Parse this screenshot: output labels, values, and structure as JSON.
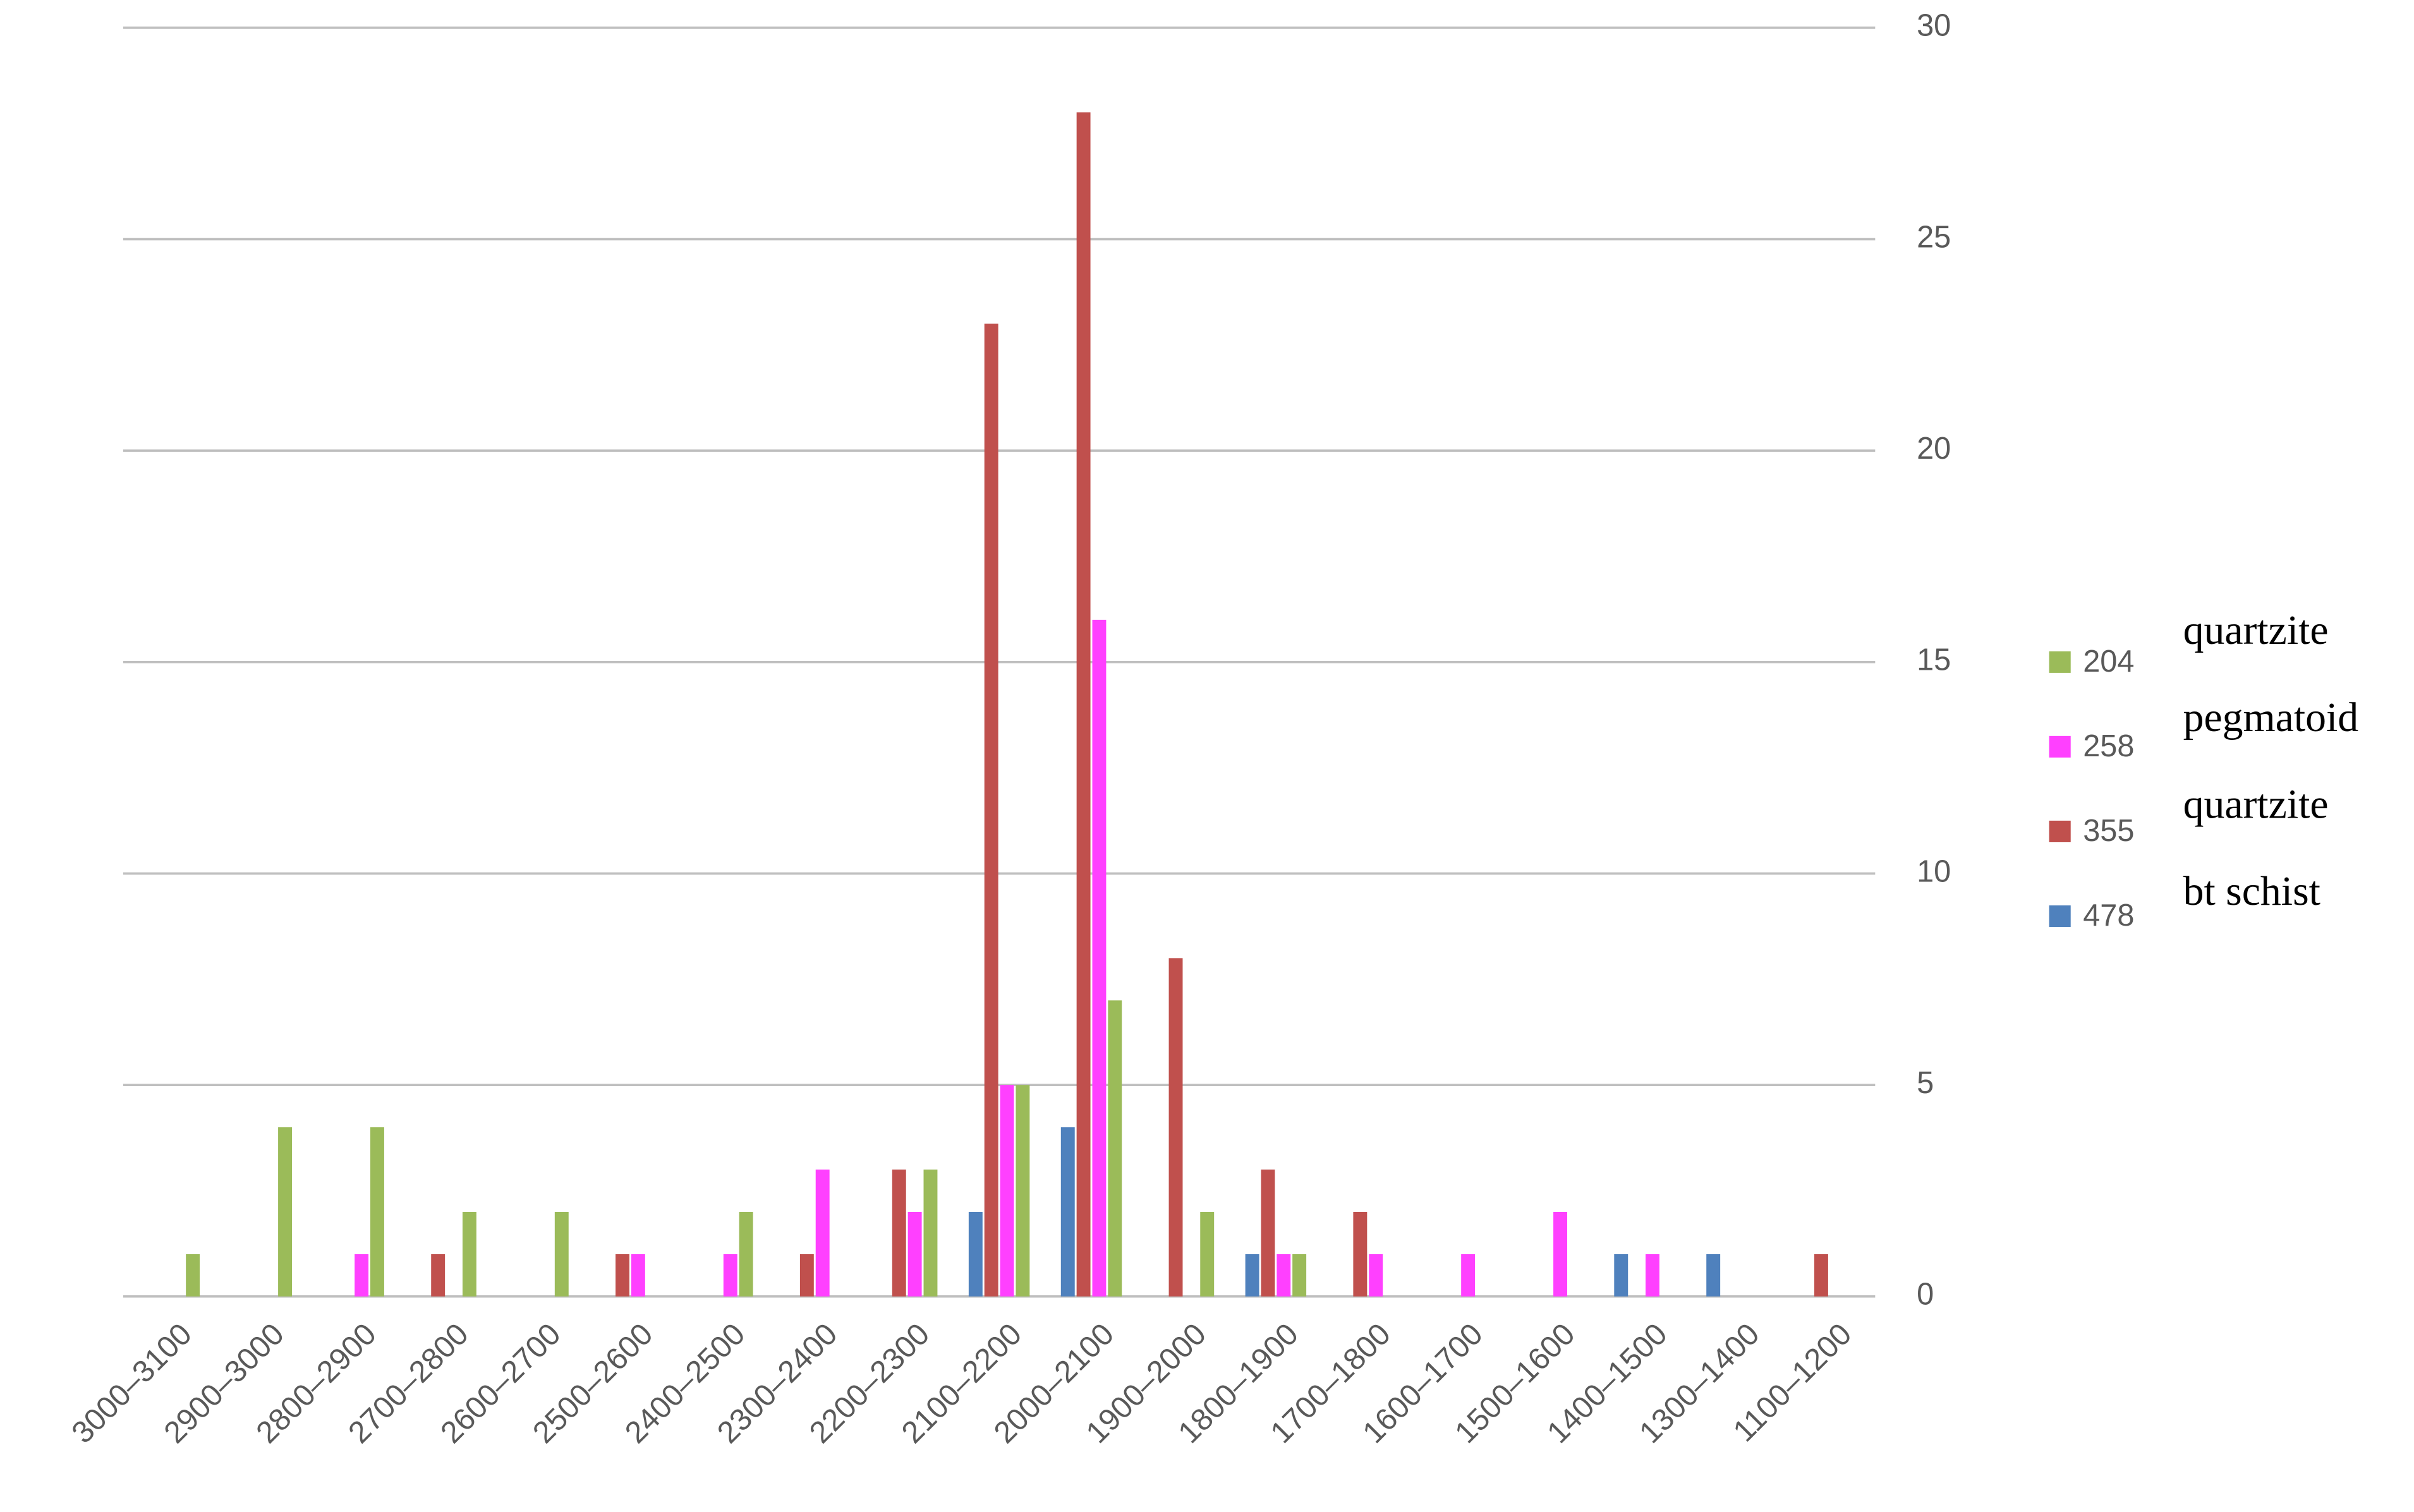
{
  "chart_data": {
    "type": "bar",
    "categories": [
      "3000–3100",
      "2900–3000",
      "2800–2900",
      "2700–2800",
      "2600–2700",
      "2500–2600",
      "2400–2500",
      "2300–2400",
      "2200–2300",
      "2100–2200",
      "2000–2100",
      "1900–2000",
      "1800–1900",
      "1700–1800",
      "1600–1700",
      "1500–1600",
      "1400–1500",
      "1300–1400",
      "1100–1200"
    ],
    "series": [
      {
        "name": "204",
        "label": "quartzite",
        "color": "#9bbb59",
        "values": [
          1,
          4,
          4,
          2,
          2,
          0,
          2,
          0,
          3,
          5,
          7,
          2,
          1,
          0,
          0,
          0,
          0,
          0,
          0
        ]
      },
      {
        "name": "258",
        "label": "pegmatoid",
        "color": "#ff40ff",
        "values": [
          0,
          0,
          1,
          0,
          0,
          1,
          1,
          3,
          2,
          5,
          16,
          0,
          1,
          1,
          1,
          2,
          1,
          0,
          0
        ]
      },
      {
        "name": "355",
        "label": "quartzite",
        "color": "#c0504d",
        "values": [
          0,
          0,
          0,
          1,
          0,
          1,
          0,
          1,
          3,
          23,
          28,
          8,
          3,
          2,
          0,
          0,
          0,
          0,
          1
        ]
      },
      {
        "name": "478",
        "label": "bt schist",
        "color": "#4f81bd",
        "values": [
          0,
          0,
          0,
          0,
          0,
          0,
          0,
          0,
          0,
          2,
          4,
          0,
          1,
          0,
          0,
          0,
          1,
          1,
          0
        ]
      }
    ],
    "ylim": [
      0,
      30
    ],
    "yticks": [
      0,
      5,
      10,
      15,
      20,
      25,
      30
    ],
    "y_axis_side": "right",
    "grid": true,
    "legend": "right"
  }
}
